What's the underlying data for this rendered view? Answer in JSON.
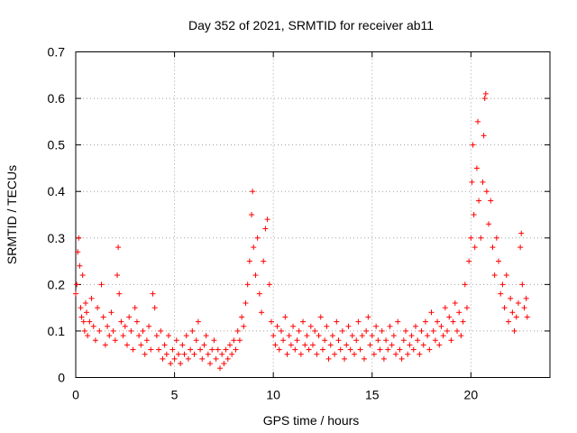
{
  "chart_data": {
    "type": "scatter",
    "title": "Day 352 of 2021, SRMTID for receiver ab11",
    "xlabel": "GPS time / hours",
    "ylabel": "SRMTID / TECUs",
    "xlim": [
      0,
      24
    ],
    "ylim": [
      0,
      0.7
    ],
    "xticks": [
      0,
      5,
      10,
      15,
      20
    ],
    "xtick_labels": [
      "0",
      "5",
      "10",
      "15",
      "20"
    ],
    "yticks": [
      0,
      0.1,
      0.2,
      0.3,
      0.4,
      0.5,
      0.6,
      0.7
    ],
    "ytick_labels": [
      "0",
      "0.1",
      "0.2",
      "0.3",
      "0.4",
      "0.5",
      "0.6",
      "0.7"
    ],
    "grid": true,
    "marker": "+",
    "color": "#ff0000",
    "series": [
      {
        "name": "SRMTID",
        "points": [
          [
            0.0,
            0.18
          ],
          [
            0.05,
            0.2
          ],
          [
            0.1,
            0.27
          ],
          [
            0.15,
            0.3
          ],
          [
            0.2,
            0.24
          ],
          [
            0.25,
            0.15
          ],
          [
            0.3,
            0.13
          ],
          [
            0.35,
            0.22
          ],
          [
            0.4,
            0.12
          ],
          [
            0.45,
            0.1
          ],
          [
            0.5,
            0.16
          ],
          [
            0.55,
            0.14
          ],
          [
            0.6,
            0.09
          ],
          [
            0.7,
            0.12
          ],
          [
            0.8,
            0.17
          ],
          [
            0.9,
            0.11
          ],
          [
            1.0,
            0.08
          ],
          [
            1.1,
            0.15
          ],
          [
            1.2,
            0.1
          ],
          [
            1.3,
            0.2
          ],
          [
            1.4,
            0.13
          ],
          [
            1.5,
            0.07
          ],
          [
            1.6,
            0.11
          ],
          [
            1.7,
            0.09
          ],
          [
            1.8,
            0.14
          ],
          [
            1.9,
            0.1
          ],
          [
            2.0,
            0.08
          ],
          [
            2.1,
            0.22
          ],
          [
            2.15,
            0.28
          ],
          [
            2.2,
            0.18
          ],
          [
            2.3,
            0.12
          ],
          [
            2.4,
            0.09
          ],
          [
            2.5,
            0.11
          ],
          [
            2.6,
            0.07
          ],
          [
            2.7,
            0.13
          ],
          [
            2.8,
            0.1
          ],
          [
            2.9,
            0.06
          ],
          [
            3.0,
            0.15
          ],
          [
            3.1,
            0.12
          ],
          [
            3.2,
            0.09
          ],
          [
            3.3,
            0.07
          ],
          [
            3.4,
            0.1
          ],
          [
            3.5,
            0.05
          ],
          [
            3.6,
            0.08
          ],
          [
            3.7,
            0.11
          ],
          [
            3.8,
            0.06
          ],
          [
            3.9,
            0.18
          ],
          [
            4.0,
            0.15
          ],
          [
            4.1,
            0.09
          ],
          [
            4.2,
            0.06
          ],
          [
            4.3,
            0.1
          ],
          [
            4.4,
            0.04
          ],
          [
            4.5,
            0.07
          ],
          [
            4.6,
            0.05
          ],
          [
            4.7,
            0.09
          ],
          [
            4.8,
            0.03
          ],
          [
            4.9,
            0.06
          ],
          [
            5.0,
            0.04
          ],
          [
            5.1,
            0.08
          ],
          [
            5.2,
            0.05
          ],
          [
            5.3,
            0.03
          ],
          [
            5.4,
            0.07
          ],
          [
            5.5,
            0.05
          ],
          [
            5.6,
            0.09
          ],
          [
            5.7,
            0.04
          ],
          [
            5.8,
            0.06
          ],
          [
            5.9,
            0.1
          ],
          [
            6.0,
            0.05
          ],
          [
            6.1,
            0.08
          ],
          [
            6.2,
            0.12
          ],
          [
            6.3,
            0.06
          ],
          [
            6.4,
            0.04
          ],
          [
            6.5,
            0.07
          ],
          [
            6.6,
            0.09
          ],
          [
            6.7,
            0.05
          ],
          [
            6.8,
            0.03
          ],
          [
            6.9,
            0.06
          ],
          [
            7.0,
            0.08
          ],
          [
            7.1,
            0.04
          ],
          [
            7.2,
            0.06
          ],
          [
            7.3,
            0.02
          ],
          [
            7.4,
            0.05
          ],
          [
            7.5,
            0.03
          ],
          [
            7.6,
            0.06
          ],
          [
            7.7,
            0.04
          ],
          [
            7.8,
            0.07
          ],
          [
            7.9,
            0.05
          ],
          [
            8.0,
            0.08
          ],
          [
            8.1,
            0.06
          ],
          [
            8.2,
            0.1
          ],
          [
            8.3,
            0.08
          ],
          [
            8.4,
            0.13
          ],
          [
            8.5,
            0.11
          ],
          [
            8.6,
            0.16
          ],
          [
            8.7,
            0.2
          ],
          [
            8.8,
            0.25
          ],
          [
            8.9,
            0.35
          ],
          [
            8.95,
            0.4
          ],
          [
            9.0,
            0.28
          ],
          [
            9.1,
            0.22
          ],
          [
            9.2,
            0.3
          ],
          [
            9.3,
            0.18
          ],
          [
            9.4,
            0.14
          ],
          [
            9.5,
            0.25
          ],
          [
            9.6,
            0.32
          ],
          [
            9.7,
            0.34
          ],
          [
            9.8,
            0.2
          ],
          [
            9.9,
            0.12
          ],
          [
            10.0,
            0.09
          ],
          [
            10.1,
            0.07
          ],
          [
            10.2,
            0.11
          ],
          [
            10.3,
            0.06
          ],
          [
            10.4,
            0.1
          ],
          [
            10.5,
            0.08
          ],
          [
            10.6,
            0.13
          ],
          [
            10.7,
            0.05
          ],
          [
            10.8,
            0.09
          ],
          [
            10.9,
            0.07
          ],
          [
            11.0,
            0.11
          ],
          [
            11.1,
            0.06
          ],
          [
            11.2,
            0.08
          ],
          [
            11.3,
            0.1
          ],
          [
            11.4,
            0.05
          ],
          [
            11.5,
            0.12
          ],
          [
            11.6,
            0.07
          ],
          [
            11.7,
            0.09
          ],
          [
            11.8,
            0.06
          ],
          [
            11.9,
            0.11
          ],
          [
            12.0,
            0.07
          ],
          [
            12.1,
            0.1
          ],
          [
            12.2,
            0.05
          ],
          [
            12.3,
            0.09
          ],
          [
            12.4,
            0.13
          ],
          [
            12.5,
            0.06
          ],
          [
            12.6,
            0.08
          ],
          [
            12.7,
            0.11
          ],
          [
            12.8,
            0.04
          ],
          [
            12.9,
            0.07
          ],
          [
            13.0,
            0.09
          ],
          [
            13.1,
            0.05
          ],
          [
            13.2,
            0.12
          ],
          [
            13.3,
            0.08
          ],
          [
            13.4,
            0.06
          ],
          [
            13.5,
            0.1
          ],
          [
            13.6,
            0.04
          ],
          [
            13.7,
            0.07
          ],
          [
            13.8,
            0.11
          ],
          [
            13.9,
            0.06
          ],
          [
            14.0,
            0.09
          ],
          [
            14.1,
            0.05
          ],
          [
            14.2,
            0.08
          ],
          [
            14.3,
            0.12
          ],
          [
            14.4,
            0.06
          ],
          [
            14.5,
            0.09
          ],
          [
            14.6,
            0.04
          ],
          [
            14.7,
            0.1
          ],
          [
            14.8,
            0.13
          ],
          [
            14.9,
            0.07
          ],
          [
            15.0,
            0.09
          ],
          [
            15.1,
            0.05
          ],
          [
            15.2,
            0.11
          ],
          [
            15.3,
            0.08
          ],
          [
            15.4,
            0.06
          ],
          [
            15.5,
            0.1
          ],
          [
            15.6,
            0.04
          ],
          [
            15.7,
            0.08
          ],
          [
            15.8,
            0.06
          ],
          [
            15.9,
            0.11
          ],
          [
            16.0,
            0.07
          ],
          [
            16.1,
            0.09
          ],
          [
            16.2,
            0.05
          ],
          [
            16.3,
            0.12
          ],
          [
            16.4,
            0.06
          ],
          [
            16.5,
            0.04
          ],
          [
            16.6,
            0.08
          ],
          [
            16.7,
            0.1
          ],
          [
            16.8,
            0.05
          ],
          [
            16.9,
            0.07
          ],
          [
            17.0,
            0.09
          ],
          [
            17.1,
            0.06
          ],
          [
            17.2,
            0.11
          ],
          [
            17.3,
            0.08
          ],
          [
            17.4,
            0.05
          ],
          [
            17.5,
            0.1
          ],
          [
            17.6,
            0.07
          ],
          [
            17.7,
            0.12
          ],
          [
            17.8,
            0.09
          ],
          [
            17.9,
            0.06
          ],
          [
            18.0,
            0.14
          ],
          [
            18.1,
            0.1
          ],
          [
            18.2,
            0.08
          ],
          [
            18.3,
            0.12
          ],
          [
            18.4,
            0.07
          ],
          [
            18.5,
            0.11
          ],
          [
            18.6,
            0.09
          ],
          [
            18.7,
            0.15
          ],
          [
            18.8,
            0.1
          ],
          [
            18.9,
            0.13
          ],
          [
            19.0,
            0.08
          ],
          [
            19.1,
            0.12
          ],
          [
            19.2,
            0.16
          ],
          [
            19.3,
            0.1
          ],
          [
            19.4,
            0.14
          ],
          [
            19.5,
            0.09
          ],
          [
            19.6,
            0.12
          ],
          [
            19.7,
            0.2
          ],
          [
            19.8,
            0.15
          ],
          [
            19.9,
            0.25
          ],
          [
            20.0,
            0.3
          ],
          [
            20.05,
            0.42
          ],
          [
            20.1,
            0.5
          ],
          [
            20.15,
            0.35
          ],
          [
            20.2,
            0.28
          ],
          [
            20.3,
            0.45
          ],
          [
            20.35,
            0.55
          ],
          [
            20.4,
            0.38
          ],
          [
            20.5,
            0.3
          ],
          [
            20.6,
            0.42
          ],
          [
            20.65,
            0.52
          ],
          [
            20.7,
            0.6
          ],
          [
            20.75,
            0.61
          ],
          [
            20.8,
            0.4
          ],
          [
            20.9,
            0.33
          ],
          [
            21.0,
            0.38
          ],
          [
            21.1,
            0.28
          ],
          [
            21.2,
            0.22
          ],
          [
            21.3,
            0.3
          ],
          [
            21.4,
            0.25
          ],
          [
            21.5,
            0.18
          ],
          [
            21.6,
            0.2
          ],
          [
            21.7,
            0.15
          ],
          [
            21.8,
            0.22
          ],
          [
            21.9,
            0.12
          ],
          [
            22.0,
            0.17
          ],
          [
            22.1,
            0.14
          ],
          [
            22.2,
            0.1
          ],
          [
            22.3,
            0.13
          ],
          [
            22.4,
            0.16
          ],
          [
            22.5,
            0.28
          ],
          [
            22.55,
            0.31
          ],
          [
            22.6,
            0.2
          ],
          [
            22.7,
            0.15
          ],
          [
            22.8,
            0.17
          ],
          [
            22.85,
            0.13
          ]
        ]
      }
    ]
  }
}
